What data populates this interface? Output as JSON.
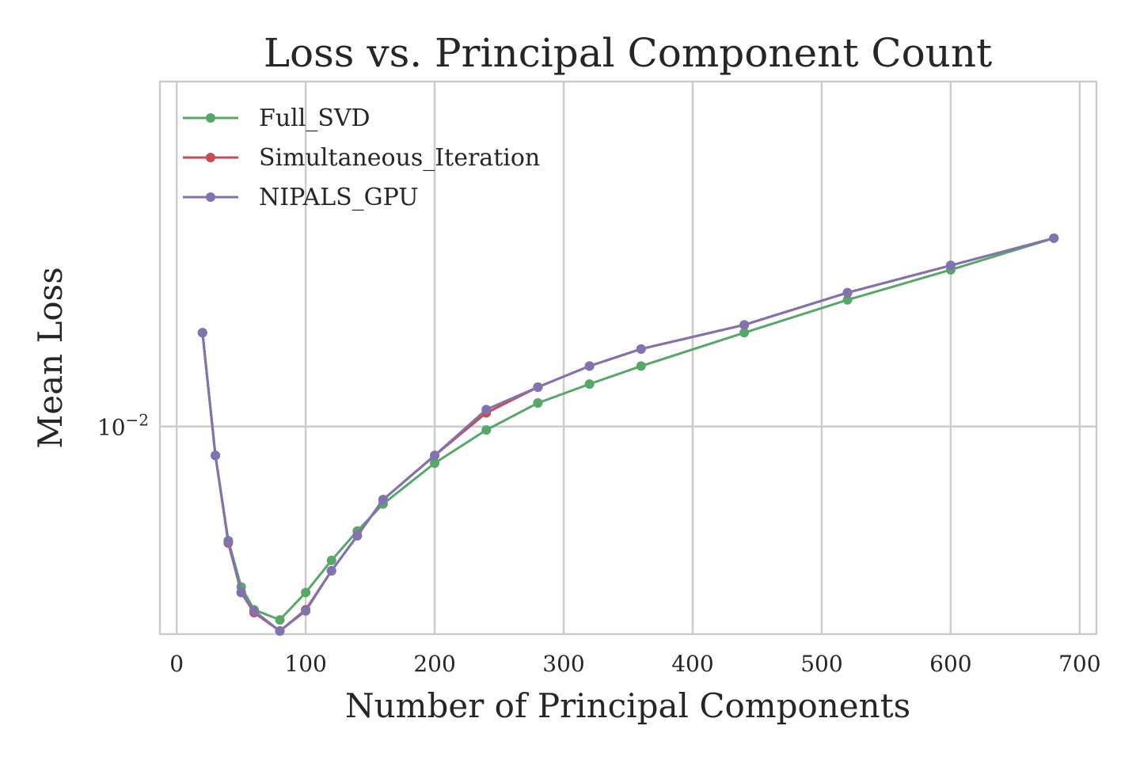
{
  "chart_data": {
    "type": "line",
    "title": "Loss vs. Principal Component Count",
    "xlabel": "Number of Principal Components",
    "ylabel": "Mean Loss",
    "x": [
      20,
      30,
      40,
      50,
      60,
      80,
      100,
      120,
      140,
      160,
      200,
      240,
      280,
      320,
      360,
      440,
      520,
      600,
      680
    ],
    "xlim": [
      -13,
      713
    ],
    "ylim": [
      0.0055,
      0.027
    ],
    "yscale": "log",
    "xticks": [
      "0",
      "100",
      "200",
      "300",
      "400",
      "500",
      "600",
      "700"
    ],
    "yticks": [
      {
        "base": "10",
        "exp": "−2"
      }
    ],
    "grid": true,
    "legend_position": "upper left",
    "series": [
      {
        "name": "Full_SVD",
        "color": "#55a868",
        "values": [
          0.0131,
          0.0092,
          0.0072,
          0.0063,
          0.0059,
          0.00573,
          0.0062,
          0.0068,
          0.0074,
          0.008,
          0.009,
          0.0099,
          0.0107,
          0.0113,
          0.0119,
          0.0131,
          0.0144,
          0.0157,
          0.0172
        ]
      },
      {
        "name": "Simultaneous_Iteration",
        "color": "#c44e52",
        "values": [
          0.0131,
          0.0092,
          0.00715,
          0.0062,
          0.00585,
          0.00555,
          0.0059,
          0.0066,
          0.0073,
          0.0081,
          0.0092,
          0.0104,
          0.0112,
          0.0119,
          0.0125,
          0.0134,
          0.0147,
          0.0159,
          0.0172
        ]
      },
      {
        "name": "NIPALS_GPU",
        "color": "#8172b2",
        "values": [
          0.0131,
          0.0092,
          0.00718,
          0.0062,
          0.00588,
          0.00555,
          0.00588,
          0.0066,
          0.0073,
          0.0081,
          0.0092,
          0.0105,
          0.0112,
          0.0119,
          0.0125,
          0.0134,
          0.0147,
          0.0159,
          0.0172
        ]
      }
    ]
  }
}
